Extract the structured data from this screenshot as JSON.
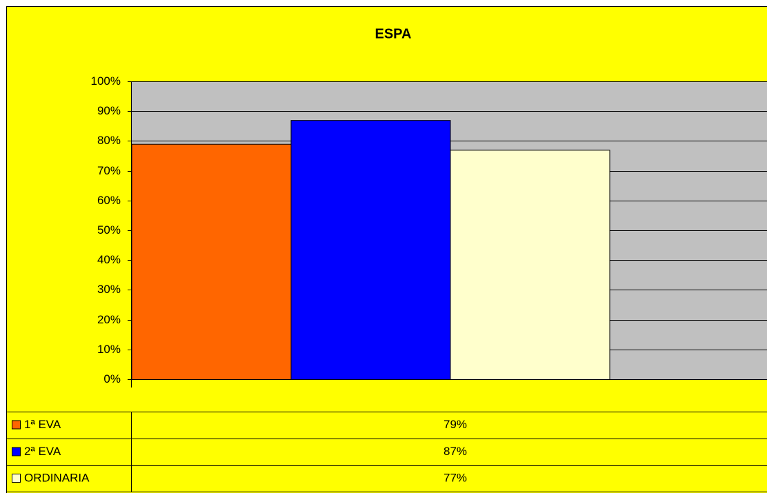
{
  "chart_data": {
    "type": "bar",
    "title": "ESPA",
    "categories": [
      null
    ],
    "series": [
      {
        "name": "1ª EVA",
        "color": "#ff6600",
        "values": [
          79
        ],
        "value_labels": [
          "79%"
        ]
      },
      {
        "name": "2ª EVA",
        "color": "#0000ff",
        "values": [
          87
        ],
        "value_labels": [
          "87%"
        ]
      },
      {
        "name": "ORDINARIA",
        "color": "#ffffcc",
        "values": [
          77
        ],
        "value_labels": [
          "77%"
        ]
      }
    ],
    "ylim": [
      0,
      100
    ],
    "yticks": [
      {
        "value": 0,
        "label": "0%"
      },
      {
        "value": 10,
        "label": "10%"
      },
      {
        "value": 20,
        "label": "20%"
      },
      {
        "value": 30,
        "label": "30%"
      },
      {
        "value": 40,
        "label": "40%"
      },
      {
        "value": 50,
        "label": "50%"
      },
      {
        "value": 60,
        "label": "60%"
      },
      {
        "value": 70,
        "label": "70%"
      },
      {
        "value": 80,
        "label": "80%"
      },
      {
        "value": 90,
        "label": "90%"
      },
      {
        "value": 100,
        "label": "100%"
      }
    ],
    "grid": true
  }
}
